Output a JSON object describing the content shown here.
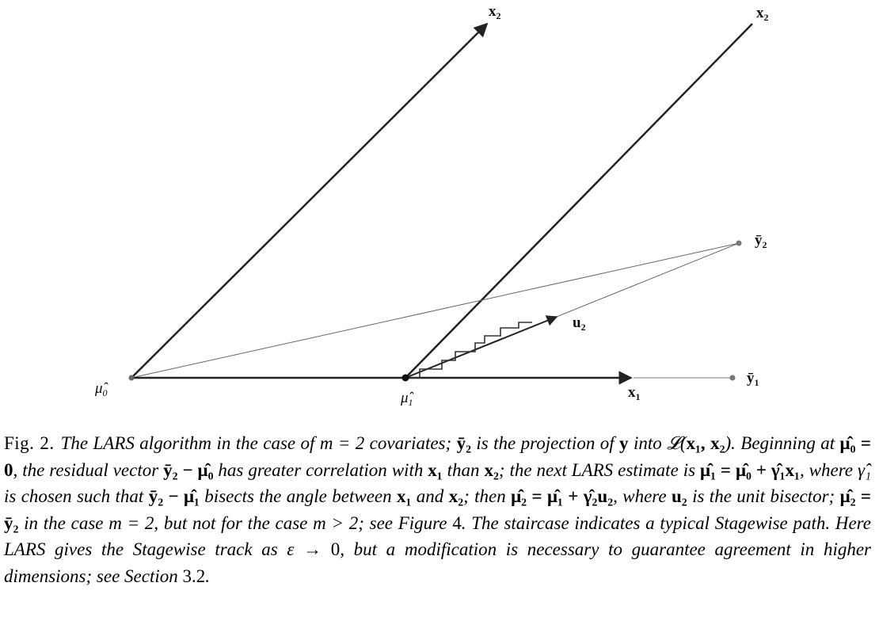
{
  "figure": {
    "labels": {
      "x2_left": "x",
      "x2_left_sub": "2",
      "x2_right": "x",
      "x2_right_sub": "2",
      "ybar2": "ȳ",
      "ybar2_sub": "2",
      "ybar1": "ȳ",
      "ybar1_sub": "1",
      "u2": "u",
      "u2_sub": "2",
      "x1": "x",
      "x1_sub": "1",
      "mu0": "μ̂",
      "mu0_sub": "0",
      "mu1": "μ̂",
      "mu1_sub": "1"
    }
  },
  "caption": {
    "fig_label": "Fig. 2.",
    "s1": "The LARS algorithm in the case of m = 2 covariates; ",
    "s2": "ȳ₂",
    "s3": " is the projection of ",
    "s4": "y",
    "s5": " into 𝓛(",
    "s6": "x₁, x₂",
    "s7": "). Beginning at ",
    "s8": "μ̂₀ = 0",
    "s9": ", the residual vector ",
    "s10": "ȳ₂ − μ̂₀",
    "s11": " has greater correlation with ",
    "s12": "x₁",
    "s13": " than ",
    "s14": "x₂",
    "s15": "; the next LARS estimate is ",
    "s16": "μ̂₁ = μ̂₀ + γ̂₁x₁",
    "s17": ", where γ̂₁ is chosen such that ",
    "s18": "ȳ₂ − μ̂₁",
    "s19": " bisects the angle between ",
    "s20": "x₁",
    "s21": " and ",
    "s22": "x₂",
    "s23": "; then ",
    "s24": "μ̂₂ = μ̂₁ + γ̂₂u₂",
    "s25": ", where ",
    "s26": "u₂",
    "s27": " is the unit bisector; ",
    "s28": "μ̂₂ = ȳ₂",
    "s29": " in the case m = 2, but not for the case m > 2; see Figure ",
    "s30": "4",
    "s31": ". The staircase indicates a typical Stagewise path. Here LARS gives the Stagewise track as ε → ",
    "s32": "0",
    "s33": ", but a modification is necessary to guarantee agreement in higher dimensions; see Section ",
    "s34": "3.2",
    "s35": "."
  }
}
